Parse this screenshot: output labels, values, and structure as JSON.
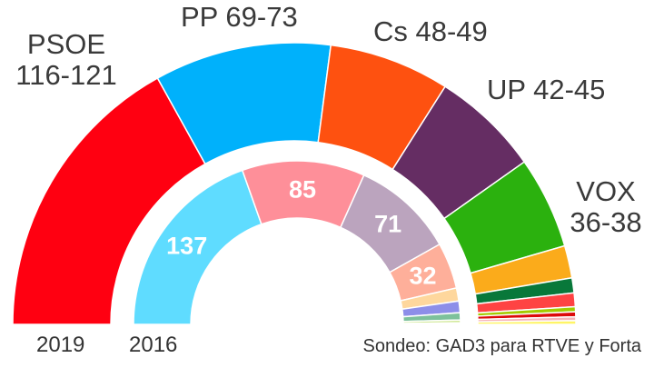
{
  "chart_data": [
    {
      "type": "pie",
      "subtype": "half-donut (parliament)",
      "title": "2019",
      "note": "Sondeo: GAD3 para RTVE y Forta",
      "total": 350,
      "series": [
        {
          "name": "PSOE",
          "range": "116-121",
          "value": 118.5,
          "color": "#ff0011"
        },
        {
          "name": "PP",
          "range": "69-73",
          "value": 71,
          "color": "#00b1fb"
        },
        {
          "name": "Cs",
          "range": "48-49",
          "value": 48.5,
          "color": "#fe5110"
        },
        {
          "name": "UP",
          "range": "42-45",
          "value": 43.5,
          "color": "#652d63"
        },
        {
          "name": "VOX",
          "range": "36-38",
          "value": 37,
          "color": "#2bb10e"
        },
        {
          "name": "Otros 1",
          "value": 13,
          "color": "#fbab1b"
        },
        {
          "name": "Otros 2",
          "value": 6,
          "color": "#08783a"
        },
        {
          "name": "Otros 3",
          "value": 5.5,
          "color": "#fe4343"
        },
        {
          "name": "Otros 4",
          "value": 2,
          "color": "#a3cc00"
        },
        {
          "name": "Otros 5",
          "value": 2,
          "color": "#dd0a0a"
        },
        {
          "name": "Otros 6",
          "value": 1.5,
          "color": "#f6b3b8"
        },
        {
          "name": "Otros 7",
          "value": 1.5,
          "color": "#fff566"
        }
      ]
    },
    {
      "type": "pie",
      "subtype": "half-donut (parliament)",
      "title": "2016",
      "total": 350,
      "series": [
        {
          "name": "PP",
          "value": 137,
          "label": "137",
          "color": "#5fdcff"
        },
        {
          "name": "PSOE",
          "value": 85,
          "label": "85",
          "color": "#fe8f99"
        },
        {
          "name": "UP",
          "value": 71,
          "label": "71",
          "color": "#bba4be"
        },
        {
          "name": "Cs",
          "value": 32,
          "label": "32",
          "color": "#feaf9a"
        },
        {
          "name": "Otros 1",
          "value": 9,
          "color": "#fed79d"
        },
        {
          "name": "Otros 2",
          "value": 8,
          "color": "#8d8ee9"
        },
        {
          "name": "Otros 3",
          "value": 5,
          "color": "#7dc19c"
        },
        {
          "name": "Otros 4",
          "value": 2,
          "color": "#d2e99a"
        },
        {
          "name": "Otros 5",
          "value": 1,
          "color": "#fff2a6"
        }
      ]
    }
  ],
  "labels": {
    "psoe_name": "PSOE",
    "psoe_range": "116-121",
    "pp": "PP 69-73",
    "cs": "Cs 48-49",
    "up": "UP 42-45",
    "vox_name": "VOX",
    "vox_range": "36-38",
    "year_2019": "2019",
    "year_2016": "2016",
    "source": "Sondeo: GAD3 para RTVE y Forta"
  }
}
